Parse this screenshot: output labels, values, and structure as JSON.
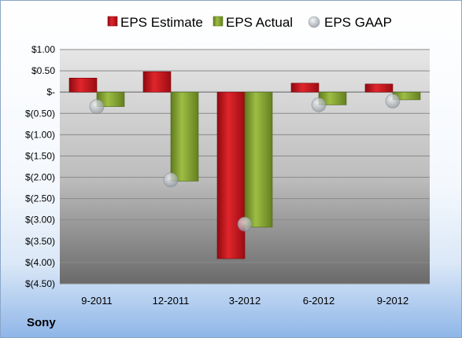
{
  "company": "Sony",
  "chart_data": {
    "type": "bar",
    "categories": [
      "9-2011",
      "12-2011",
      "3-2012",
      "6-2012",
      "9-2012"
    ],
    "series": [
      {
        "name": "EPS Estimate",
        "kind": "bar",
        "color": "#c0141b",
        "values": [
          0.33,
          0.48,
          -3.91,
          0.21,
          0.19
        ]
      },
      {
        "name": "EPS Actual",
        "kind": "bar",
        "color": "#7f9e2c",
        "values": [
          -0.34,
          -2.09,
          -3.17,
          -0.3,
          -0.18
        ]
      },
      {
        "name": "EPS GAAP",
        "kind": "marker",
        "color": "#a9b0b7",
        "values": [
          -0.34,
          -2.06,
          -3.1,
          -0.3,
          -0.21
        ]
      }
    ],
    "yticks": [
      "$1.00",
      "$0.50",
      "$-",
      "$(0.50)",
      "$(1.00)",
      "$(1.50)",
      "$(2.00)",
      "$(2.50)",
      "$(3.00)",
      "$(3.50)",
      "$(4.00)",
      "$(4.50)"
    ],
    "ylim": [
      -4.5,
      1.0
    ],
    "grid": true,
    "legend": "top",
    "title": "",
    "xlabel": "",
    "ylabel": ""
  }
}
